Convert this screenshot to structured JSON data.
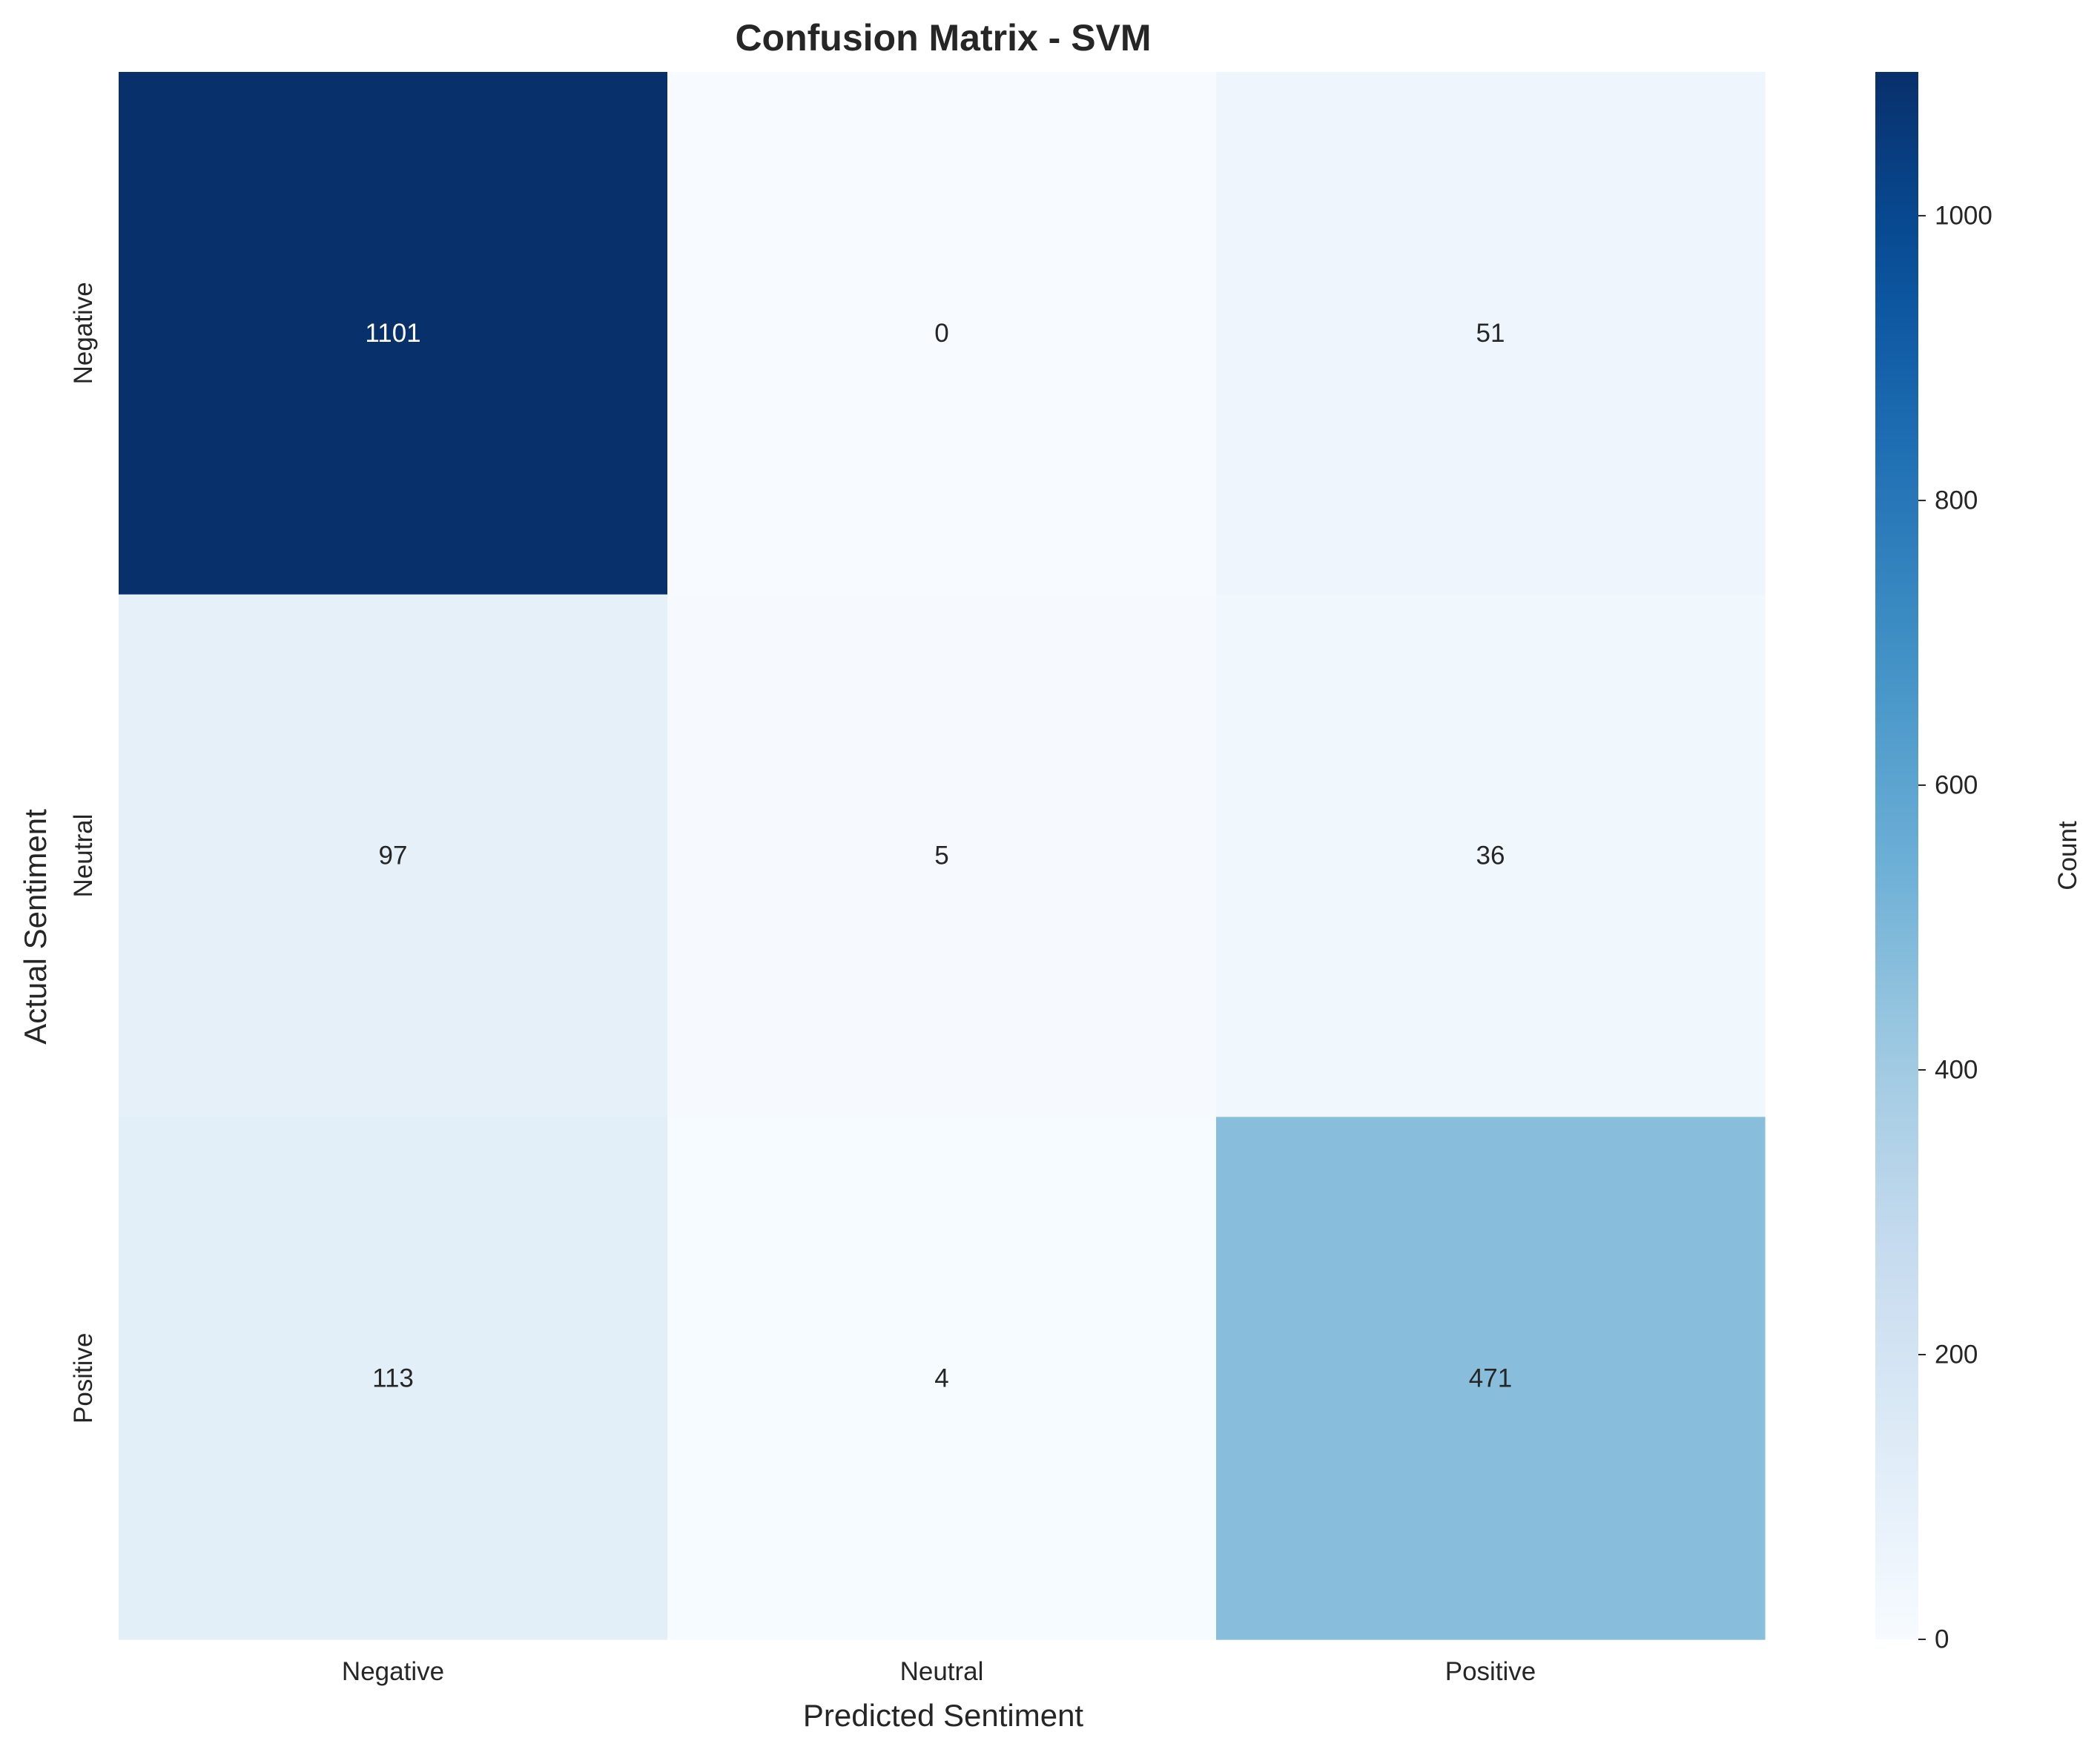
{
  "chart_data": {
    "type": "heatmap",
    "title": "Confusion Matrix - SVM",
    "xlabel": "Predicted Sentiment",
    "ylabel": "Actual Sentiment",
    "x_categories": [
      "Negative",
      "Neutral",
      "Positive"
    ],
    "y_categories": [
      "Negative",
      "Neutral",
      "Positive"
    ],
    "values": [
      [
        1101,
        0,
        51
      ],
      [
        97,
        5,
        36
      ],
      [
        113,
        4,
        471
      ]
    ],
    "colormap": "Blues",
    "color_range": [
      0,
      1101
    ],
    "colorbar": {
      "label": "Count",
      "ticks": [
        0,
        200,
        400,
        600,
        800,
        1000
      ]
    },
    "grid": false
  }
}
